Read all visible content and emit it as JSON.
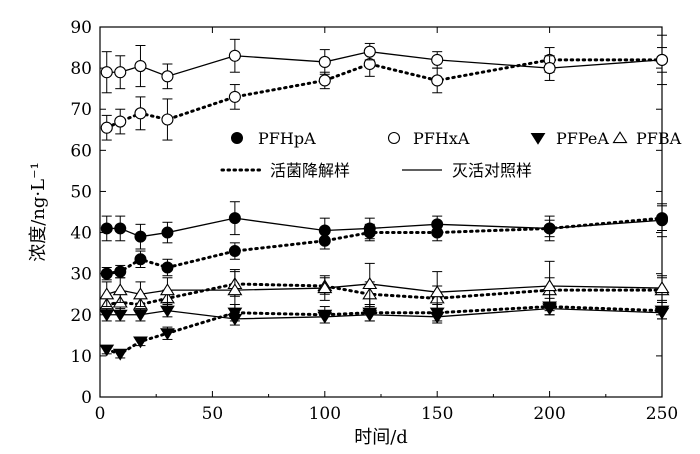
{
  "chart_data": {
    "type": "line",
    "xlabel": "时间/d",
    "ylabel": "浓度/ng·L⁻¹",
    "xlim": [
      0,
      250
    ],
    "ylim": [
      0,
      90
    ],
    "x_ticks": [
      0,
      50,
      100,
      150,
      200,
      250
    ],
    "y_ticks": [
      0,
      10,
      20,
      30,
      40,
      50,
      60,
      70,
      80,
      90
    ],
    "grid": false,
    "legend": {
      "position": "center",
      "markers": [
        {
          "compound": "PFHpA",
          "marker": "filled-circle"
        },
        {
          "compound": "PFHxA",
          "marker": "open-circle"
        },
        {
          "compound": "PFPeA",
          "marker": "filled-triangle-down"
        },
        {
          "compound": "PFBA",
          "marker": "open-triangle-up"
        }
      ],
      "lines": [
        {
          "label": "活菌降解样",
          "style": "dotted"
        },
        {
          "label": "灭活对照样",
          "style": "solid"
        }
      ]
    },
    "series": [
      {
        "compound": "PFHxA",
        "treatment": "活菌降解样",
        "marker": "open-circle",
        "line": "dotted",
        "x": [
          3,
          9,
          18,
          30,
          60,
          100,
          120,
          150,
          200,
          250
        ],
        "y": [
          65.5,
          67,
          69,
          67.5,
          73,
          77,
          81,
          77,
          82,
          82
        ],
        "err": [
          3,
          3,
          4,
          5,
          3,
          2,
          3,
          3,
          3,
          3
        ]
      },
      {
        "compound": "PFHxA",
        "treatment": "灭活对照样",
        "marker": "open-circle",
        "line": "solid",
        "x": [
          3,
          9,
          18,
          30,
          60,
          100,
          120,
          150,
          200,
          250
        ],
        "y": [
          79,
          79,
          80.5,
          78,
          83,
          81.5,
          84,
          82,
          80,
          82
        ],
        "err": [
          5,
          4,
          5,
          3,
          4,
          3,
          2,
          2,
          3,
          6
        ]
      },
      {
        "compound": "PFHpA",
        "treatment": "活菌降解样",
        "marker": "filled-circle",
        "line": "dotted",
        "x": [
          3,
          9,
          18,
          30,
          60,
          100,
          120,
          150,
          200,
          250
        ],
        "y": [
          30,
          30.5,
          33.5,
          31.5,
          35.5,
          38,
          40,
          40,
          41,
          43.5
        ],
        "err": [
          1.5,
          1.5,
          2,
          2,
          2,
          2,
          2,
          2,
          2,
          3
        ]
      },
      {
        "compound": "PFHpA",
        "treatment": "灭活对照样",
        "marker": "filled-circle",
        "line": "solid",
        "x": [
          3,
          9,
          18,
          30,
          60,
          100,
          120,
          150,
          200,
          250
        ],
        "y": [
          41,
          41,
          39,
          40,
          43.5,
          40.5,
          41,
          42,
          41,
          43
        ],
        "err": [
          3,
          3,
          3,
          2.5,
          4,
          3,
          2.5,
          2,
          3,
          4
        ]
      },
      {
        "compound": "PFBA",
        "treatment": "活菌降解样",
        "marker": "open-triangle-up",
        "line": "dotted",
        "x": [
          3,
          9,
          18,
          30,
          60,
          100,
          120,
          150,
          200,
          250
        ],
        "y": [
          22.5,
          23,
          22.5,
          24,
          27.5,
          27,
          25,
          24,
          26,
          26
        ],
        "err": [
          2,
          2,
          2,
          2,
          3,
          2,
          3,
          3,
          3,
          3
        ]
      },
      {
        "compound": "PFBA",
        "treatment": "灭活对照样",
        "marker": "open-triangle-up",
        "line": "solid",
        "x": [
          3,
          9,
          18,
          30,
          60,
          100,
          120,
          150,
          200,
          250
        ],
        "y": [
          25,
          26,
          25,
          26,
          26,
          26.5,
          27.5,
          25.5,
          27,
          26.5
        ],
        "err": [
          3,
          3,
          3,
          3,
          5,
          3,
          5,
          5,
          6,
          3
        ]
      },
      {
        "compound": "PFPeA",
        "treatment": "活菌降解样",
        "marker": "filled-triangle-down",
        "line": "dotted",
        "x": [
          3,
          9,
          18,
          30,
          60,
          100,
          120,
          150,
          200,
          250
        ],
        "y": [
          11.5,
          10.5,
          13.5,
          15.5,
          20.5,
          20,
          20.5,
          20.5,
          22,
          21
        ],
        "err": [
          1,
          1,
          1,
          1.5,
          2,
          2,
          2,
          2,
          2,
          2
        ]
      },
      {
        "compound": "PFPeA",
        "treatment": "灭活对照样",
        "marker": "filled-triangle-down",
        "line": "solid",
        "x": [
          3,
          9,
          18,
          30,
          60,
          100,
          120,
          150,
          200,
          250
        ],
        "y": [
          20,
          20,
          20,
          21,
          19,
          19.5,
          20,
          19.5,
          21.5,
          20.5
        ],
        "err": [
          1.5,
          1.5,
          1.5,
          1.5,
          1.5,
          1.5,
          1.5,
          1.5,
          1.5,
          1.5
        ]
      }
    ]
  }
}
